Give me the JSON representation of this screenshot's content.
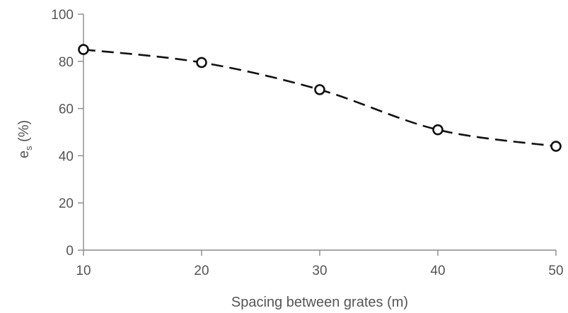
{
  "chart_data": {
    "type": "line",
    "title": "",
    "xlabel": "Spacing between grates (m)",
    "ylabel_main": "e",
    "ylabel_sub": "s",
    "ylabel_suffix": " (%)",
    "x": [
      10,
      20,
      30,
      40,
      50
    ],
    "series": [
      {
        "values": [
          85,
          79.5,
          68,
          51,
          44
        ]
      }
    ],
    "xlim": [
      10,
      50
    ],
    "ylim": [
      0,
      100
    ],
    "xticks": [
      "10",
      "20",
      "30",
      "40",
      "50"
    ],
    "yticks": [
      "0",
      "20",
      "40",
      "60",
      "80",
      "100"
    ],
    "grid": false,
    "line_style": "dashed",
    "marker": "open-circle"
  }
}
